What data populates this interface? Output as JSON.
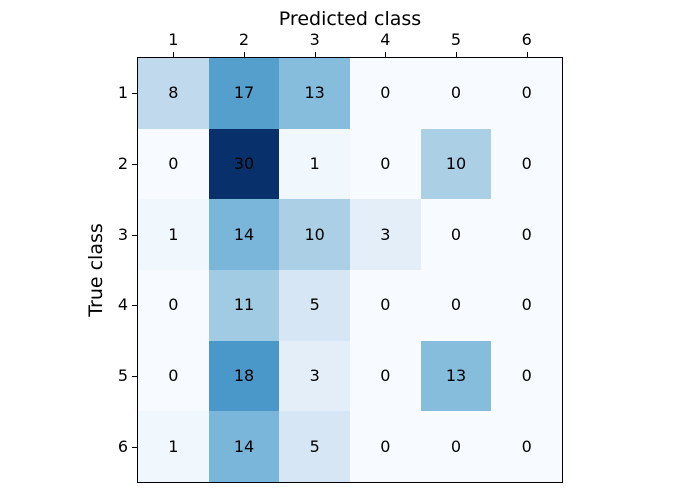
{
  "chart_data": {
    "type": "heatmap",
    "title": "",
    "xlabel": "Predicted class",
    "ylabel": "True class",
    "x_tick_labels": [
      "1",
      "2",
      "3",
      "4",
      "5",
      "6"
    ],
    "y_tick_labels": [
      "1",
      "2",
      "3",
      "4",
      "5",
      "6"
    ],
    "matrix": [
      [
        8,
        17,
        13,
        0,
        0,
        0
      ],
      [
        0,
        30,
        1,
        0,
        10,
        0
      ],
      [
        1,
        14,
        10,
        3,
        0,
        0
      ],
      [
        0,
        11,
        5,
        0,
        0,
        0
      ],
      [
        0,
        18,
        3,
        0,
        13,
        0
      ],
      [
        1,
        14,
        5,
        0,
        0,
        0
      ]
    ],
    "colormap": "Blues",
    "vmin": 0,
    "vmax": 30,
    "value_colors": {
      "0": "#f7fbff",
      "1": "#f0f7fd",
      "3": "#e3eef9",
      "5": "#d6e6f4",
      "8": "#c1d9ed",
      "10": "#abd0e6",
      "11": "#a1cbe2",
      "13": "#86bddc",
      "14": "#79b6d9",
      "17": "#559fcd",
      "18": "#4a98c9",
      "30": "#08306b"
    },
    "cell_text_color": "#000000",
    "spine_color": "#000000",
    "background": "#ffffff",
    "grid": "off",
    "legend": "none",
    "x_axis_position": "top",
    "y_axis_position": "left"
  }
}
